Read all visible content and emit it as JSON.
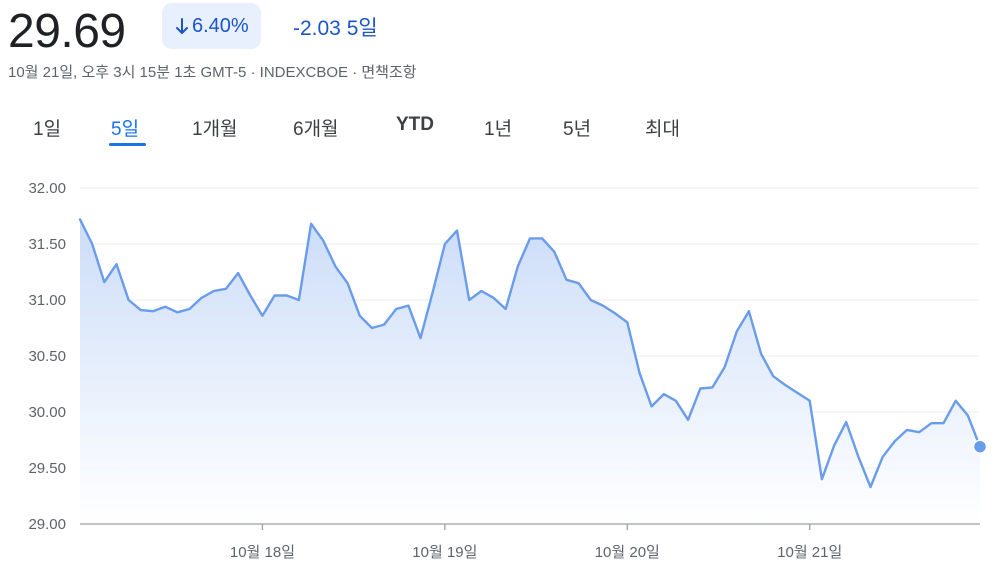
{
  "header": {
    "price": "29.69",
    "change_percent": "6.40%",
    "change_abs": "-2.03 5일",
    "meta_line": "10월 21일, 오후 3시 15분 1초 GMT-5 · INDEXCBOE · 면책조항"
  },
  "colors": {
    "accent": "#1a73e8",
    "badge_bg": "#e8f0fe",
    "badge_text": "#1a56c9",
    "line": "#6a9cec",
    "fill_top": "#c9dbf8"
  },
  "tabs": [
    {
      "label": "1일",
      "active": false
    },
    {
      "label": "5일",
      "active": true
    },
    {
      "label": "1개월",
      "active": false
    },
    {
      "label": "6개월",
      "active": false
    },
    {
      "label": "YTD",
      "active": false
    },
    {
      "label": "1년",
      "active": false
    },
    {
      "label": "5년",
      "active": false
    },
    {
      "label": "최대",
      "active": false
    }
  ],
  "chart_data": {
    "type": "area",
    "title": "",
    "xlabel": "",
    "ylabel": "",
    "ylim": [
      29.0,
      32.0
    ],
    "yticks": [
      "29.00",
      "29.50",
      "30.00",
      "30.50",
      "31.00",
      "31.50",
      "32.00"
    ],
    "grid": true,
    "x_tick_labels": [
      "10월 18일",
      "10월 19일",
      "10월 20일",
      "10월 21일"
    ],
    "x_tick_positions": [
      15,
      30,
      45,
      60
    ],
    "x_range": [
      0,
      74
    ],
    "series": [
      {
        "values": [
          31.72,
          31.5,
          31.16,
          31.32,
          31.0,
          30.91,
          30.9,
          30.94,
          30.89,
          30.92,
          31.02,
          31.08,
          31.1,
          31.24,
          31.04,
          30.86,
          31.04,
          31.04,
          31.0,
          31.68,
          31.53,
          31.3,
          31.15,
          30.86,
          30.75,
          30.78,
          30.92,
          30.95,
          30.66,
          31.07,
          31.5,
          31.62,
          31.0,
          31.08,
          31.02,
          30.92,
          31.3,
          31.55,
          31.55,
          31.43,
          31.18,
          31.15,
          31.0,
          30.95,
          30.88,
          30.8,
          30.35,
          30.05,
          30.16,
          30.1,
          29.93,
          30.21,
          30.22,
          30.4,
          30.72,
          30.9,
          30.52,
          30.32,
          30.24,
          30.17,
          30.1,
          29.4,
          29.7,
          29.91,
          29.6,
          29.33,
          29.6,
          29.74,
          29.84,
          29.82,
          29.9,
          29.9,
          30.1,
          29.97,
          29.69
        ]
      }
    ],
    "last_point_marker": true
  }
}
